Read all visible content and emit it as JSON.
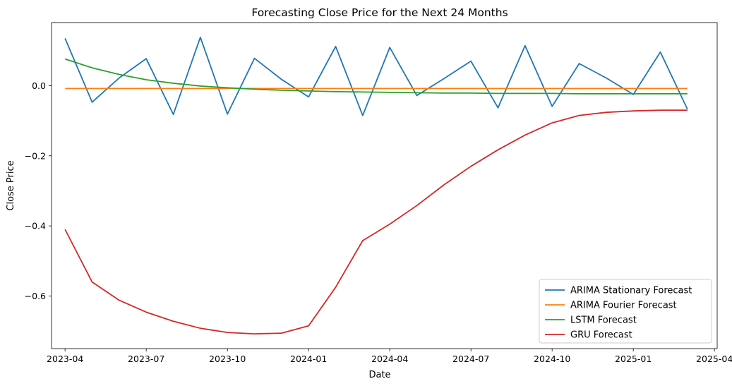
{
  "chart_data": {
    "type": "line",
    "title": "Forecasting Close Price for the Next 24 Months",
    "xlabel": "Date",
    "ylabel": "Close Price",
    "x": [
      "2023-04",
      "2023-05",
      "2023-06",
      "2023-07",
      "2023-08",
      "2023-09",
      "2023-10",
      "2023-11",
      "2023-12",
      "2024-01",
      "2024-02",
      "2024-03",
      "2024-04",
      "2024-05",
      "2024-06",
      "2024-07",
      "2024-08",
      "2024-09",
      "2024-10",
      "2024-11",
      "2024-12",
      "2025-01",
      "2025-02",
      "2025-03"
    ],
    "xlim": [
      "2023-03",
      "2025-04"
    ],
    "ylim": [
      -0.75,
      0.18
    ],
    "xticks": [
      "2023-04",
      "2023-07",
      "2023-10",
      "2024-01",
      "2024-04",
      "2024-07",
      "2024-10",
      "2025-01",
      "2025-04"
    ],
    "yticks": [
      0.0,
      -0.2,
      -0.4,
      -0.6
    ],
    "ytick_labels": [
      "0.0",
      "−0.2",
      "−0.4",
      "−0.6"
    ],
    "grid": false,
    "legend_position": "lower-right",
    "series": [
      {
        "name": "ARIMA Stationary Forecast",
        "color": "#1f77b4",
        "values": [
          0.135,
          -0.047,
          0.022,
          0.077,
          -0.082,
          0.138,
          -0.081,
          0.078,
          0.018,
          -0.032,
          0.112,
          -0.085,
          0.109,
          -0.028,
          0.02,
          0.07,
          -0.063,
          0.114,
          -0.059,
          0.063,
          0.022,
          -0.025,
          0.096,
          -0.067
        ]
      },
      {
        "name": "ARIMA Fourier Forecast",
        "color": "#ff7f0e",
        "values": [
          -0.008,
          -0.008,
          -0.008,
          -0.008,
          -0.008,
          -0.008,
          -0.008,
          -0.008,
          -0.008,
          -0.008,
          -0.008,
          -0.008,
          -0.008,
          -0.008,
          -0.008,
          -0.008,
          -0.008,
          -0.008,
          -0.008,
          -0.008,
          -0.008,
          -0.008,
          -0.008,
          -0.008
        ]
      },
      {
        "name": "LSTM Forecast",
        "color": "#2ca02c",
        "values": [
          0.076,
          0.051,
          0.032,
          0.017,
          0.007,
          -0.001,
          -0.006,
          -0.01,
          -0.013,
          -0.015,
          -0.017,
          -0.018,
          -0.019,
          -0.02,
          -0.021,
          -0.021,
          -0.022,
          -0.022,
          -0.022,
          -0.023,
          -0.023,
          -0.023,
          -0.023,
          -0.023
        ]
      },
      {
        "name": "GRU Forecast",
        "color": "#d62728",
        "values": [
          -0.41,
          -0.56,
          -0.612,
          -0.646,
          -0.672,
          -0.692,
          -0.704,
          -0.708,
          -0.706,
          -0.685,
          -0.575,
          -0.442,
          -0.395,
          -0.342,
          -0.283,
          -0.23,
          -0.183,
          -0.141,
          -0.106,
          -0.085,
          -0.076,
          -0.072,
          -0.07,
          -0.07
        ]
      }
    ]
  }
}
